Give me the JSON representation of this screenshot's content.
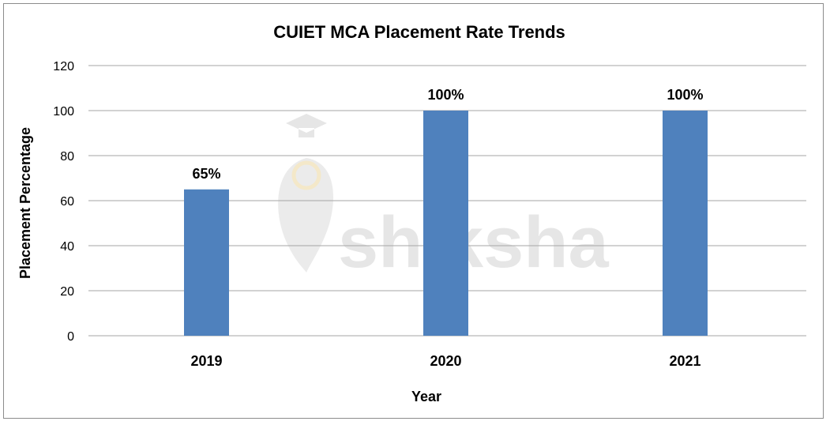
{
  "watermark": "shiksha",
  "colors": {
    "bar": "#4f81bd",
    "grid": "#a6a6a6",
    "watermark": "#e2e2e2"
  },
  "chart_data": {
    "type": "bar",
    "title": "CUIET MCA Placement Rate Trends",
    "xlabel": "Year",
    "ylabel": "Placement Percentage",
    "categories": [
      "2019",
      "2020",
      "2021"
    ],
    "values": [
      65,
      100,
      100
    ],
    "data_labels": [
      "65%",
      "100%",
      "100%"
    ],
    "ylim": [
      0,
      120
    ],
    "yticks": [
      0,
      20,
      40,
      60,
      80,
      100,
      120
    ],
    "grid": true,
    "legend": "none"
  }
}
